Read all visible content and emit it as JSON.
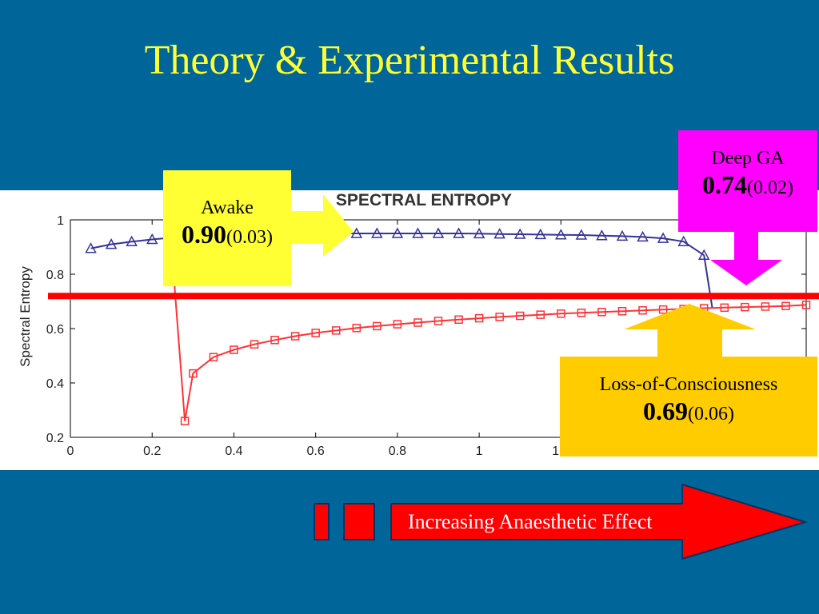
{
  "slide": {
    "title": "Theory & Experimental Results"
  },
  "callouts": {
    "awake": {
      "label": "Awake",
      "value": "0.90",
      "sd": "(0.03)"
    },
    "deep_ga": {
      "label": "Deep GA",
      "value": "0.74",
      "sd": "(0.02)"
    },
    "loc": {
      "label": "Loss-of-Consciousness",
      "value": "0.69",
      "sd": "(0.06)"
    }
  },
  "effect_arrow": {
    "label": "Increasing Anaesthetic Effect"
  },
  "colors": {
    "background": "#006699",
    "title": "#ffff33",
    "awake_box": "#ffff33",
    "deep_box": "#ff00ff",
    "loc_box": "#ffcc00",
    "threshold_line": "#ff0000",
    "series_blue": "#333399",
    "series_red": "#ff3333"
  },
  "chart_data": {
    "type": "line",
    "title": "SPECTRAL ENTROPY",
    "xlabel": "",
    "ylabel": "Spectral Entropy",
    "xlim": [
      0,
      1.8
    ],
    "ylim": [
      0.2,
      1.0
    ],
    "xticks": [
      "0",
      "0.2",
      "0.4",
      "0.6",
      "0.8",
      "1",
      "1.2"
    ],
    "yticks": [
      "0.2",
      "0.4",
      "0.6",
      "0.8",
      "1"
    ],
    "threshold": 0.72,
    "series": [
      {
        "marker": "triangle",
        "color": "#333399",
        "x": [
          0.05,
          0.1,
          0.15,
          0.2,
          0.25,
          0.3,
          0.35,
          0.4,
          0.45,
          0.5,
          0.55,
          0.6,
          0.65,
          0.7,
          0.75,
          0.8,
          0.85,
          0.9,
          0.95,
          1.0,
          1.05,
          1.1,
          1.15,
          1.2,
          1.25,
          1.3,
          1.35,
          1.4,
          1.45,
          1.5,
          1.55
        ],
        "y": [
          0.895,
          0.91,
          0.92,
          0.928,
          0.935,
          0.94,
          0.945,
          0.947,
          0.948,
          0.949,
          0.95,
          0.95,
          0.95,
          0.95,
          0.95,
          0.95,
          0.95,
          0.95,
          0.95,
          0.949,
          0.948,
          0.947,
          0.946,
          0.945,
          0.944,
          0.942,
          0.94,
          0.937,
          0.932,
          0.92,
          0.87
        ]
      },
      {
        "marker": "square",
        "color": "#ff3333",
        "x": [
          0.25,
          0.28,
          0.3,
          0.35,
          0.4,
          0.45,
          0.5,
          0.55,
          0.6,
          0.65,
          0.7,
          0.75,
          0.8,
          0.85,
          0.9,
          0.95,
          1.0,
          1.05,
          1.1,
          1.15,
          1.2,
          1.25,
          1.3,
          1.35,
          1.4,
          1.45,
          1.5,
          1.55,
          1.6,
          1.65,
          1.7,
          1.75,
          1.8
        ],
        "y": [
          0.85,
          0.26,
          0.435,
          0.495,
          0.522,
          0.542,
          0.558,
          0.572,
          0.584,
          0.593,
          0.602,
          0.609,
          0.616,
          0.622,
          0.628,
          0.633,
          0.638,
          0.643,
          0.647,
          0.651,
          0.655,
          0.658,
          0.661,
          0.664,
          0.667,
          0.67,
          0.672,
          0.675,
          0.677,
          0.679,
          0.681,
          0.683,
          0.687
        ]
      }
    ],
    "drop_segment": {
      "x": [
        1.55,
        1.57
      ],
      "y": [
        0.87,
        0.678
      ]
    }
  }
}
